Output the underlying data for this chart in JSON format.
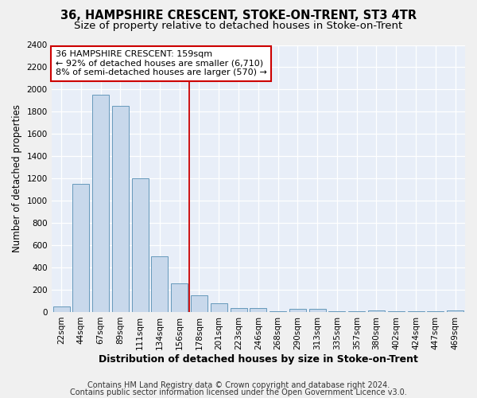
{
  "title1": "36, HAMPSHIRE CRESCENT, STOKE-ON-TRENT, ST3 4TR",
  "title2": "Size of property relative to detached houses in Stoke-on-Trent",
  "xlabel": "Distribution of detached houses by size in Stoke-on-Trent",
  "ylabel": "Number of detached properties",
  "categories": [
    "22sqm",
    "44sqm",
    "67sqm",
    "89sqm",
    "111sqm",
    "134sqm",
    "156sqm",
    "178sqm",
    "201sqm",
    "223sqm",
    "246sqm",
    "268sqm",
    "290sqm",
    "313sqm",
    "335sqm",
    "357sqm",
    "380sqm",
    "402sqm",
    "424sqm",
    "447sqm",
    "469sqm"
  ],
  "values": [
    50,
    1150,
    1950,
    1850,
    1200,
    500,
    260,
    150,
    75,
    35,
    35,
    10,
    30,
    25,
    10,
    8,
    15,
    5,
    5,
    5,
    15
  ],
  "bar_color": "#c8d8eb",
  "bar_edge_color": "#6699bb",
  "annotation_text_line1": "36 HAMPSHIRE CRESCENT: 159sqm",
  "annotation_text_line2": "← 92% of detached houses are smaller (6,710)",
  "annotation_text_line3": "8% of semi-detached houses are larger (570) →",
  "annotation_box_color": "#ffffff",
  "annotation_box_edge_color": "#cc0000",
  "vline_color": "#cc0000",
  "vline_x": 6.5,
  "footer1": "Contains HM Land Registry data © Crown copyright and database right 2024.",
  "footer2": "Contains public sector information licensed under the Open Government Licence v3.0.",
  "ylim": [
    0,
    2400
  ],
  "background_color": "#e8eef8",
  "plot_bg_color": "#e8eef8",
  "grid_color": "#ffffff",
  "title1_fontsize": 10.5,
  "title2_fontsize": 9.5,
  "xlabel_fontsize": 9,
  "ylabel_fontsize": 8.5,
  "tick_fontsize": 7.5,
  "footer_fontsize": 7,
  "annotation_fontsize": 8
}
